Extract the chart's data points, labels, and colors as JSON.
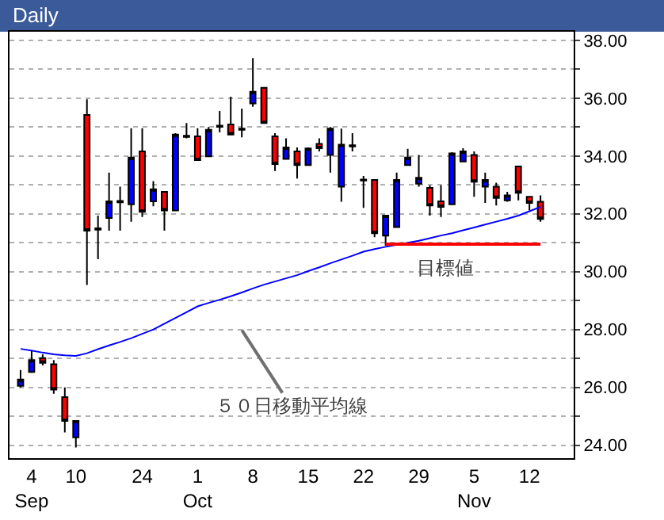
{
  "chart_data": {
    "type": "candlestick",
    "title": "Daily",
    "categories": [
      null,
      "4\nSep",
      null,
      null,
      null,
      "10",
      null,
      null,
      null,
      null,
      null,
      "24",
      null,
      null,
      null,
      null,
      "1\nOct",
      null,
      null,
      null,
      null,
      "8",
      null,
      null,
      null,
      null,
      "15",
      null,
      null,
      null,
      null,
      "22",
      null,
      null,
      null,
      null,
      "29",
      null,
      null,
      null,
      null,
      "5\nNov",
      null,
      null,
      null,
      null,
      "12",
      null
    ],
    "ohlc": [
      [
        26.05,
        26.6,
        26.0,
        26.27
      ],
      [
        26.53,
        27.27,
        26.5,
        26.94
      ],
      [
        27.01,
        27.14,
        26.76,
        26.85
      ],
      [
        26.8,
        26.94,
        25.78,
        25.92
      ],
      [
        25.66,
        26.0,
        24.44,
        24.84
      ],
      [
        24.27,
        24.84,
        23.92,
        24.84
      ],
      [
        35.42,
        35.96,
        29.54,
        31.42
      ],
      [
        31.5,
        31.94,
        30.43,
        31.45
      ],
      [
        31.86,
        33.43,
        31.42,
        32.43
      ],
      [
        32.45,
        32.94,
        31.42,
        32.4
      ],
      [
        32.33,
        34.96,
        31.73,
        33.95
      ],
      [
        34.16,
        34.96,
        31.89,
        32.07
      ],
      [
        32.43,
        33.13,
        32.26,
        32.85
      ],
      [
        32.76,
        32.76,
        31.42,
        32.12
      ],
      [
        32.12,
        34.79,
        32.1,
        34.74
      ],
      [
        34.7,
        35.14,
        34.61,
        34.66
      ],
      [
        34.68,
        34.96,
        33.86,
        33.86
      ],
      [
        33.99,
        35.0,
        33.99,
        34.91
      ],
      [
        35.05,
        35.56,
        34.82,
        35.01
      ],
      [
        35.09,
        36.05,
        34.74,
        34.74
      ],
      [
        34.95,
        35.64,
        34.65,
        34.91
      ],
      [
        35.82,
        37.39,
        35.7,
        36.22
      ],
      [
        36.36,
        36.36,
        35.14,
        35.14
      ],
      [
        34.68,
        34.79,
        33.48,
        33.72
      ],
      [
        33.9,
        34.61,
        33.9,
        34.3
      ],
      [
        34.16,
        34.3,
        33.22,
        33.69
      ],
      [
        33.69,
        34.3,
        33.69,
        34.26
      ],
      [
        34.42,
        34.61,
        34.16,
        34.27
      ],
      [
        34.04,
        35.0,
        33.43,
        34.95
      ],
      [
        32.94,
        34.95,
        32.42,
        34.39
      ],
      [
        34.37,
        34.79,
        34.16,
        34.33
      ],
      [
        33.19,
        33.31,
        32.21,
        33.15
      ],
      [
        33.17,
        33.17,
        31.19,
        31.33
      ],
      [
        31.25,
        31.94,
        30.9,
        31.94
      ],
      [
        31.54,
        33.43,
        31.54,
        33.17
      ],
      [
        33.69,
        34.25,
        33.69,
        33.95
      ],
      [
        33.04,
        34.04,
        32.94,
        33.25
      ],
      [
        32.9,
        32.99,
        31.94,
        32.29
      ],
      [
        32.43,
        32.99,
        31.89,
        32.24
      ],
      [
        32.33,
        34.13,
        32.33,
        34.09
      ],
      [
        33.81,
        34.27,
        33.81,
        34.16
      ],
      [
        34.04,
        34.16,
        32.59,
        33.11
      ],
      [
        32.94,
        33.43,
        32.38,
        33.17
      ],
      [
        32.94,
        33.08,
        32.29,
        32.55
      ],
      [
        32.47,
        32.76,
        32.42,
        32.64
      ],
      [
        33.64,
        33.64,
        32.47,
        32.73
      ],
      [
        32.59,
        32.59,
        32.12,
        32.38
      ],
      [
        32.42,
        32.64,
        31.73,
        31.82
      ]
    ],
    "colors": [
      "#0000ff",
      "#0000ff",
      "#ff0000",
      "#ff0000",
      "#ff0000",
      "#0000ff",
      "#ff0000",
      "#000000",
      "#0000ff",
      "#000000",
      "#0000ff",
      "#ff0000",
      "#0000ff",
      "#ff0000",
      "#0000ff",
      "#000000",
      "#ff0000",
      "#0000ff",
      "#000000",
      "#ff0000",
      "#000000",
      "#0000ff",
      "#ff0000",
      "#ff0000",
      "#0000ff",
      "#ff0000",
      "#0000ff",
      "#ff0000",
      "#0000ff",
      "#0000ff",
      "#000000",
      "#000000",
      "#ff0000",
      "#0000ff",
      "#0000ff",
      "#0000ff",
      "#0000ff",
      "#ff0000",
      "#ff0000",
      "#0000ff",
      "#0000ff",
      "#ff0000",
      "#0000ff",
      "#ff0000",
      "#0000ff",
      "#ff0000",
      "#ff0000",
      "#ff0000"
    ],
    "series": [
      {
        "type": "line",
        "color": "#0000ff",
        "values": [
          27.33,
          27.27,
          27.2,
          27.14,
          27.11,
          27.09,
          27.18,
          27.32,
          27.45,
          27.57,
          27.7,
          27.85,
          28.0,
          28.2,
          28.4,
          28.6,
          28.8,
          28.92,
          29.03,
          29.15,
          29.28,
          29.42,
          29.55,
          29.66,
          29.77,
          29.88,
          30.02,
          30.15,
          30.29,
          30.42,
          30.55,
          30.69,
          30.78,
          30.86,
          30.93,
          31.0,
          31.07,
          31.16,
          31.25,
          31.33,
          31.43,
          31.53,
          31.63,
          31.73,
          31.83,
          31.94,
          32.09,
          32.24
        ]
      },
      {
        "type": "line",
        "color": "#ff0000",
        "values": [
          null,
          null,
          null,
          null,
          null,
          null,
          null,
          null,
          null,
          null,
          null,
          null,
          null,
          null,
          null,
          null,
          null,
          null,
          null,
          null,
          null,
          null,
          null,
          null,
          null,
          null,
          null,
          null,
          null,
          null,
          null,
          null,
          null,
          30.95,
          30.95,
          30.95,
          30.95,
          30.95,
          30.95,
          30.95,
          30.95,
          30.95,
          30.95,
          30.95,
          30.95,
          30.95,
          30.95,
          30.95
        ]
      }
    ],
    "ylim": [
      23.55,
      38.3
    ],
    "yticks": [
      {
        "value": 24,
        "label": "24.00"
      },
      {
        "value": 25,
        "label": null
      },
      {
        "value": 26,
        "label": "26.00"
      },
      {
        "value": 27,
        "label": null
      },
      {
        "value": 28,
        "label": "28.00"
      },
      {
        "value": 29,
        "label": null
      },
      {
        "value": 30,
        "label": "30.00"
      },
      {
        "value": 31,
        "label": null
      },
      {
        "value": 32,
        "label": "32.00"
      },
      {
        "value": 33,
        "label": null
      },
      {
        "value": 34,
        "label": "34.00"
      },
      {
        "value": 35,
        "label": null
      },
      {
        "value": 36,
        "label": "36.00"
      },
      {
        "value": 37,
        "label": null
      },
      {
        "value": 38,
        "label": "38.00"
      }
    ],
    "grid": "y",
    "annotations": [
      "目標値",
      "５０日移動平均線"
    ]
  }
}
